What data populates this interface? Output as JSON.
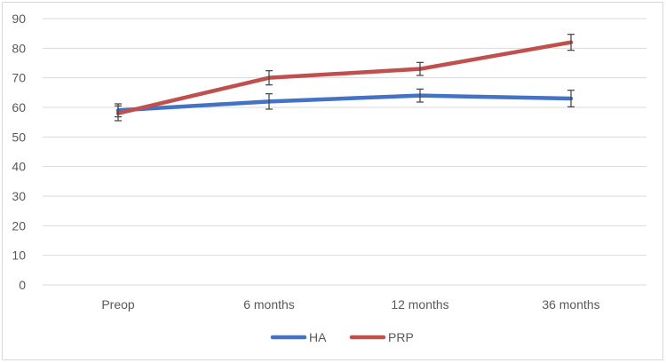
{
  "chart_data": {
    "type": "line",
    "title": "",
    "xlabel": "",
    "ylabel": "",
    "categories": [
      "Preop",
      "6 months",
      "12 months",
      "36 months"
    ],
    "ylim": [
      0,
      90
    ],
    "yticks": [
      0,
      10,
      20,
      30,
      40,
      50,
      60,
      70,
      80,
      90
    ],
    "grid": true,
    "legend_position": "bottom",
    "error_bars": true,
    "series": [
      {
        "name": "HA",
        "color": "#4472c4",
        "values": [
          59,
          62,
          64,
          63
        ],
        "error": [
          2.2,
          2.6,
          2.2,
          2.8
        ]
      },
      {
        "name": "PRP",
        "color": "#c0504d",
        "values": [
          58,
          70,
          73,
          82
        ],
        "error": [
          2.5,
          2.4,
          2.2,
          2.7
        ]
      }
    ]
  }
}
